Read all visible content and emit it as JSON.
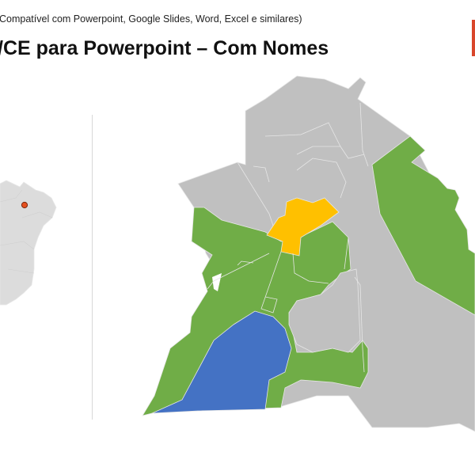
{
  "slide": {
    "subtitle": "Compatível com Powerpoint, Google Slides, Word, Excel e similares)",
    "title": "/CE para Powerpoint – Com Nomes"
  },
  "colors": {
    "neutral": "#c0c0c0",
    "green": "#70ad47",
    "yellow": "#ffc000",
    "blue": "#4472c4",
    "locator_dot": "#e5501f",
    "brand": "#d9462b"
  },
  "icons": {
    "locator": "location-dot-icon"
  }
}
